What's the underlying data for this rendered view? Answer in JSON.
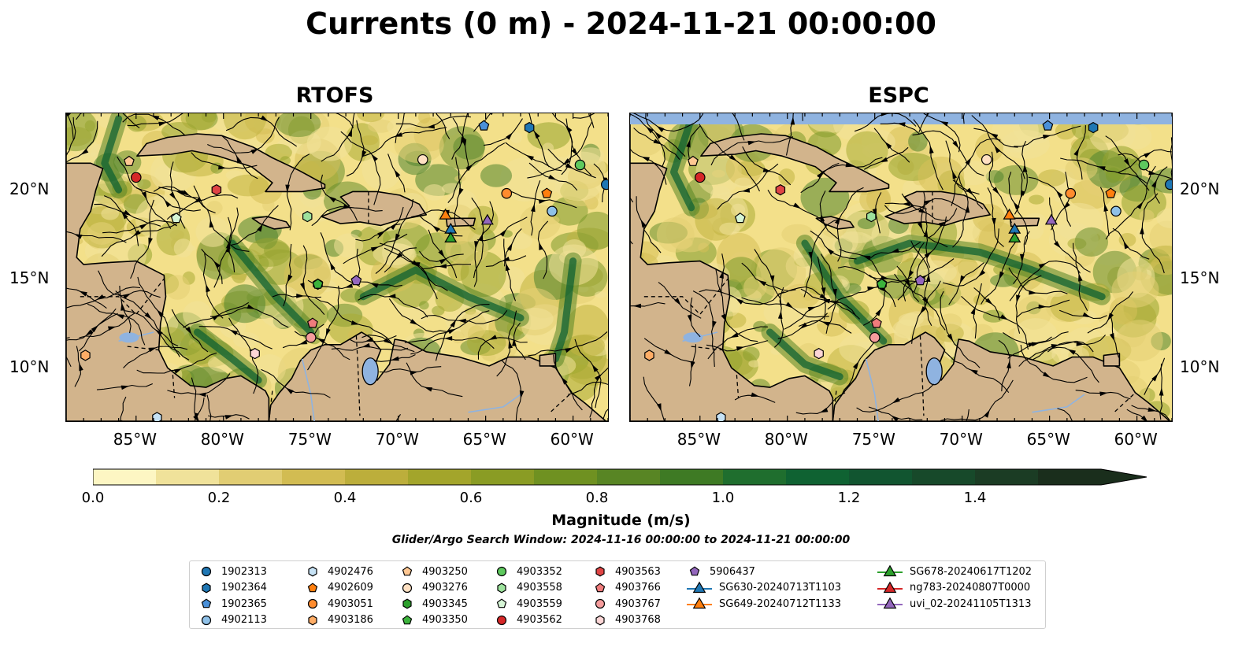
{
  "title": "Currents (0 m) - 2024-11-21 00:00:00",
  "panels": [
    {
      "title": "RTOFS"
    },
    {
      "title": "ESPC"
    }
  ],
  "axes": {
    "lon_ticks": [
      "85°W",
      "80°W",
      "75°W",
      "70°W",
      "65°W",
      "60°W"
    ],
    "lat_ticks": [
      "20°N",
      "15°N",
      "10°N"
    ]
  },
  "colorbar": {
    "label": "Magnitude (m/s)",
    "ticks": [
      "0.0",
      "0.2",
      "0.4",
      "0.6",
      "0.8",
      "1.0",
      "1.2",
      "1.4"
    ],
    "range": [
      0,
      1.6
    ],
    "colors": [
      "#fdf6c3",
      "#f0e29a",
      "#e1cd73",
      "#d2bc52",
      "#bcae3b",
      "#a3a52b",
      "#8a9c24",
      "#6f9121",
      "#588524",
      "#3e7a24",
      "#1f6e2e",
      "#0f6232",
      "#115530",
      "#17492a",
      "#1b3c24",
      "#1a2e1c"
    ]
  },
  "search_window": "Glider/Argo Search Window: 2024-11-16 00:00:00 to 2024-11-21 00:00:00",
  "colors": {
    "land": "#d2b48c",
    "water": "#8fb3e0",
    "ocean_low": "#f3e08a"
  },
  "legend": [
    [
      {
        "label": "1902313",
        "marker": "circle",
        "color": "#1f77b4"
      },
      {
        "label": "1902364",
        "marker": "hexagon",
        "color": "#1f77b4"
      },
      {
        "label": "1902365",
        "marker": "pentagon",
        "color": "#4a90d9"
      },
      {
        "label": "4902113",
        "marker": "circle",
        "color": "#8fc1e8"
      }
    ],
    [
      {
        "label": "4902476",
        "marker": "hexagon",
        "color": "#c6e2f5"
      },
      {
        "label": "4902609",
        "marker": "pentagon",
        "color": "#ff7f0e"
      },
      {
        "label": "4903051",
        "marker": "circle",
        "color": "#ff8c2e"
      },
      {
        "label": "4903186",
        "marker": "hexagon",
        "color": "#ffad66"
      }
    ],
    [
      {
        "label": "4903250",
        "marker": "pentagon",
        "color": "#ffc792"
      },
      {
        "label": "4903276",
        "marker": "circle",
        "color": "#ffe0c2"
      },
      {
        "label": "4903345",
        "marker": "hexagon",
        "color": "#2ca02c"
      },
      {
        "label": "4903350",
        "marker": "pentagon",
        "color": "#3cb33c"
      }
    ],
    [
      {
        "label": "4903352",
        "marker": "circle",
        "color": "#5ec95e"
      },
      {
        "label": "4903558",
        "marker": "hexagon",
        "color": "#9de29d"
      },
      {
        "label": "4903559",
        "marker": "pentagon",
        "color": "#d6f5d6"
      },
      {
        "label": "4903562",
        "marker": "circle",
        "color": "#d62728"
      }
    ],
    [
      {
        "label": "4903563",
        "marker": "hexagon",
        "color": "#e04545"
      },
      {
        "label": "4903766",
        "marker": "pentagon",
        "color": "#f07c7c"
      },
      {
        "label": "4903767",
        "marker": "circle",
        "color": "#f59c9c"
      },
      {
        "label": "4903768",
        "marker": "hexagon",
        "color": "#fcd6d6"
      }
    ],
    [
      {
        "label": "5906437",
        "marker": "pentagon",
        "color": "#9467bd"
      },
      {
        "label": "SG630-20240713T1103",
        "marker": "triangle-line",
        "color": "#1f77b4"
      },
      {
        "label": "SG649-20240712T1133",
        "marker": "triangle-line",
        "color": "#ff7f0e"
      }
    ],
    [
      {
        "label": "SG678-20240617T1202",
        "marker": "triangle-line",
        "color": "#2ca02c"
      },
      {
        "label": "ng783-20240807T0000",
        "marker": "triangle-line",
        "color": "#d62728"
      },
      {
        "label": "uvi_02-20241105T1313",
        "marker": "triangle-line",
        "color": "#9467bd"
      }
    ]
  ],
  "markers": [
    {
      "id": "1902313",
      "marker": "circle",
      "color": "#1f77b4",
      "lon": -58.1,
      "lat": 20.3
    },
    {
      "id": "1902364",
      "marker": "hexagon",
      "color": "#1f77b4",
      "lon": -62.5,
      "lat": 23.5
    },
    {
      "id": "1902365",
      "marker": "pentagon",
      "color": "#4a90d9",
      "lon": -65.1,
      "lat": 23.6
    },
    {
      "id": "4902113",
      "marker": "circle",
      "color": "#8fc1e8",
      "lon": -61.2,
      "lat": 18.8
    },
    {
      "id": "4902476",
      "marker": "hexagon",
      "color": "#c6e2f5",
      "lon": -83.8,
      "lat": 7.2
    },
    {
      "id": "4902609",
      "marker": "pentagon",
      "color": "#ff7f0e",
      "lon": -61.5,
      "lat": 19.8
    },
    {
      "id": "4903051",
      "marker": "circle",
      "color": "#ff8c2e",
      "lon": -63.8,
      "lat": 19.8
    },
    {
      "id": "4903186",
      "marker": "hexagon",
      "color": "#ffad66",
      "lon": -87.9,
      "lat": 10.7
    },
    {
      "id": "4903250",
      "marker": "pentagon",
      "color": "#ffc792",
      "lon": -85.4,
      "lat": 21.6
    },
    {
      "id": "4903276",
      "marker": "circle",
      "color": "#ffe0c2",
      "lon": -68.6,
      "lat": 21.7
    },
    {
      "id": "4903345",
      "marker": "hexagon",
      "color": "#2ca02c",
      "lon": -74.6,
      "lat": 14.7
    },
    {
      "id": "4903350",
      "marker": "pentagon",
      "color": "#3cb33c",
      "lon": -74.6,
      "lat": 14.7
    },
    {
      "id": "4903352",
      "marker": "circle",
      "color": "#5ec95e",
      "lon": -59.6,
      "lat": 21.4
    },
    {
      "id": "4903558",
      "marker": "hexagon",
      "color": "#9de29d",
      "lon": -75.2,
      "lat": 18.5
    },
    {
      "id": "4903559",
      "marker": "pentagon",
      "color": "#d6f5d6",
      "lon": -82.7,
      "lat": 18.4
    },
    {
      "id": "4903562",
      "marker": "circle",
      "color": "#d62728",
      "lon": -85.0,
      "lat": 20.7
    },
    {
      "id": "4903563",
      "marker": "hexagon",
      "color": "#e04545",
      "lon": -80.4,
      "lat": 20.0
    },
    {
      "id": "4903766",
      "marker": "pentagon",
      "color": "#f07c7c",
      "lon": -74.9,
      "lat": 12.5
    },
    {
      "id": "4903767",
      "marker": "circle",
      "color": "#f59c9c",
      "lon": -75.0,
      "lat": 11.7
    },
    {
      "id": "4903768",
      "marker": "hexagon",
      "color": "#fcd6d6",
      "lon": -78.2,
      "lat": 10.8
    },
    {
      "id": "5906437",
      "marker": "pentagon",
      "color": "#9467bd",
      "lon": -72.4,
      "lat": 14.9
    },
    {
      "id": "SG630-20240713T1103",
      "marker": "triangle",
      "color": "#1f77b4",
      "lon": -67.0,
      "lat": 17.8
    },
    {
      "id": "SG649-20240712T1133",
      "marker": "triangle",
      "color": "#ff7f0e",
      "lon": -67.3,
      "lat": 18.6
    },
    {
      "id": "SG678-20240617T1202",
      "marker": "triangle",
      "color": "#2ca02c",
      "lon": -67.0,
      "lat": 17.3
    },
    {
      "id": "uvi_02-20241105T1313",
      "marker": "triangle",
      "color": "#9467bd",
      "lon": -64.9,
      "lat": 18.3
    }
  ]
}
